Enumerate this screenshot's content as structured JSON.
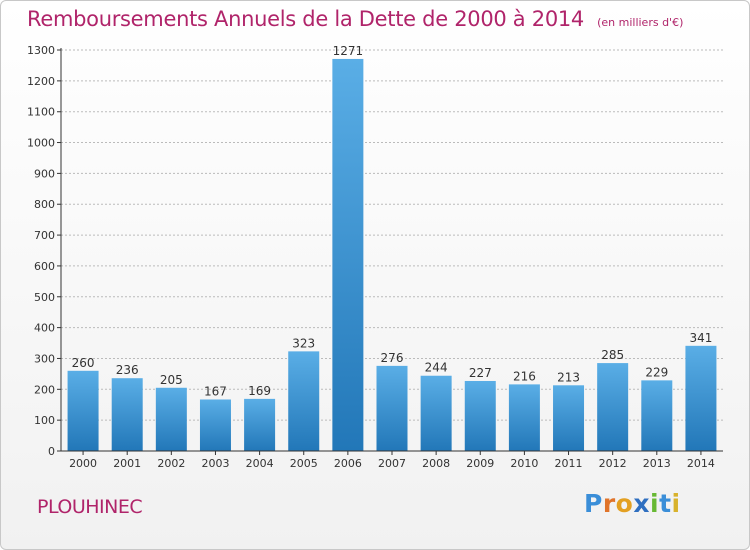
{
  "header": {
    "title": "Remboursements Annuels de la Dette de 2000 à 2014",
    "unit": "(en milliers d'€)"
  },
  "footer": {
    "commune": "PLOUHINEC",
    "logo_letters": [
      "P",
      "r",
      "o",
      "x",
      "i",
      "t",
      "i"
    ],
    "logo_colors": [
      "#3a8ed8",
      "#e0742a",
      "#e3a022",
      "#2f6fc0",
      "#68b934",
      "#3a8ed8",
      "#d8b22c"
    ]
  },
  "colors": {
    "accent": "#b0246a",
    "bar_top": "#5aaee6",
    "bar_bottom": "#2277b8",
    "axis": "#333333",
    "grid": "#bbbbbb"
  },
  "chart_data": {
    "type": "bar",
    "categories": [
      "2000",
      "2001",
      "2002",
      "2003",
      "2004",
      "2005",
      "2006",
      "2007",
      "2008",
      "2009",
      "2010",
      "2011",
      "2012",
      "2013",
      "2014"
    ],
    "values": [
      260,
      236,
      205,
      167,
      169,
      323,
      1271,
      276,
      244,
      227,
      216,
      213,
      285,
      229,
      341
    ],
    "data_labels": [
      "260",
      "236",
      "205",
      "167",
      "169",
      "323",
      "1271",
      "276",
      "244",
      "227",
      "216",
      "213",
      "285",
      "229",
      "341"
    ],
    "yticks": [
      "0",
      "100",
      "200",
      "300",
      "400",
      "500",
      "600",
      "700",
      "800",
      "900",
      "1000",
      "1100",
      "1200",
      "1300"
    ],
    "ylim": [
      0,
      1300
    ],
    "grid": true,
    "legend": "none"
  }
}
